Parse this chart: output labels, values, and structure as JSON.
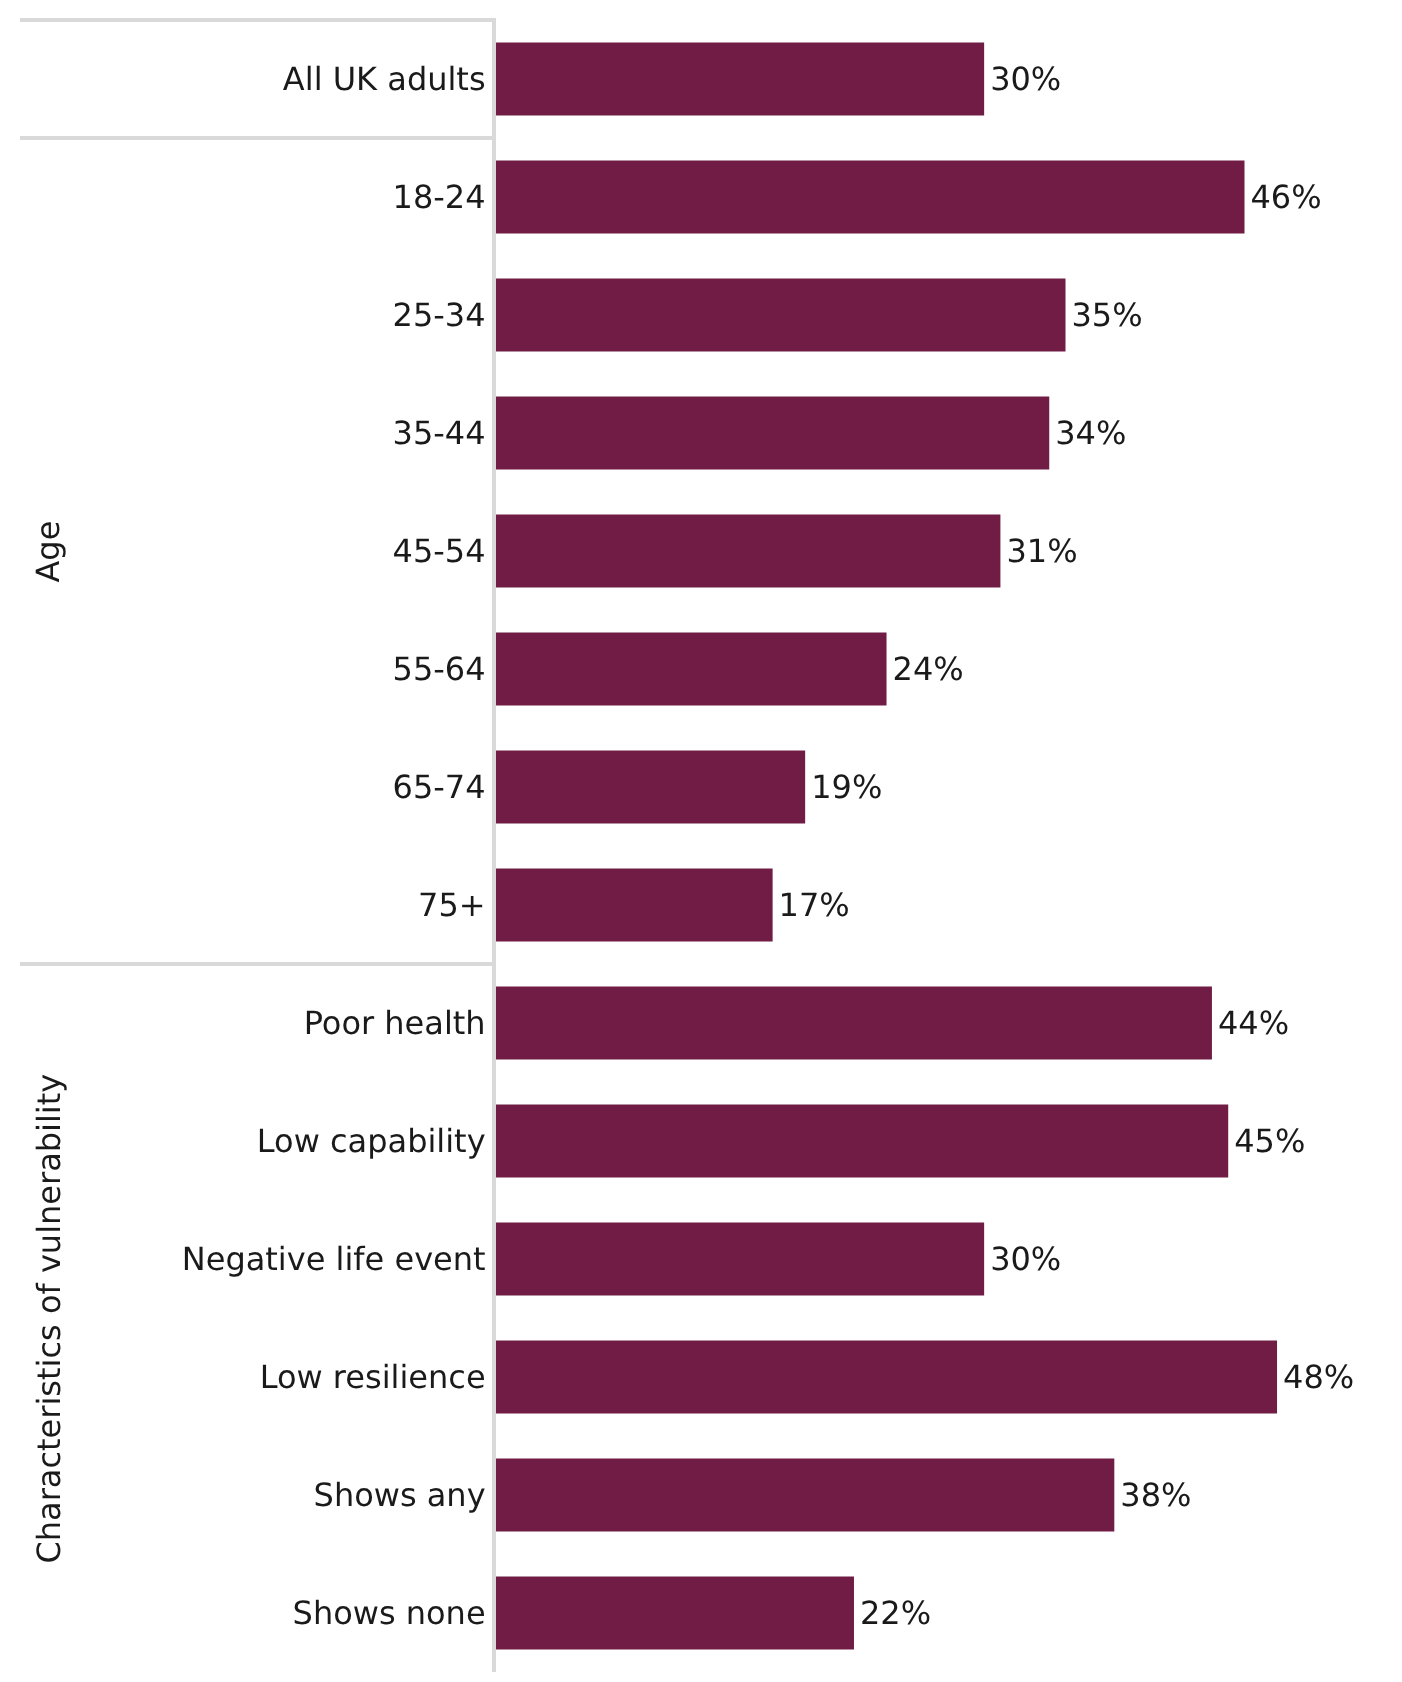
{
  "chart_data": {
    "type": "bar",
    "orientation": "horizontal",
    "categories": [
      "All UK adults",
      "18-24",
      "25-34",
      "35-44",
      "45-54",
      "55-64",
      "65-74",
      "75+",
      "Poor health",
      "Low capability",
      "Negative life event",
      "Low resilience",
      "Shows any",
      "Shows none"
    ],
    "values": [
      30,
      46,
      35,
      34,
      31,
      24,
      19,
      17,
      44,
      45,
      30,
      48,
      38,
      22
    ],
    "value_labels": [
      "30%",
      "46%",
      "35%",
      "34%",
      "31%",
      "24%",
      "19%",
      "17%",
      "44%",
      "45%",
      "30%",
      "48%",
      "38%",
      "22%"
    ],
    "color": "#701c45",
    "annotations": [
      "Age",
      "Characteristics of vulnerability"
    ]
  }
}
